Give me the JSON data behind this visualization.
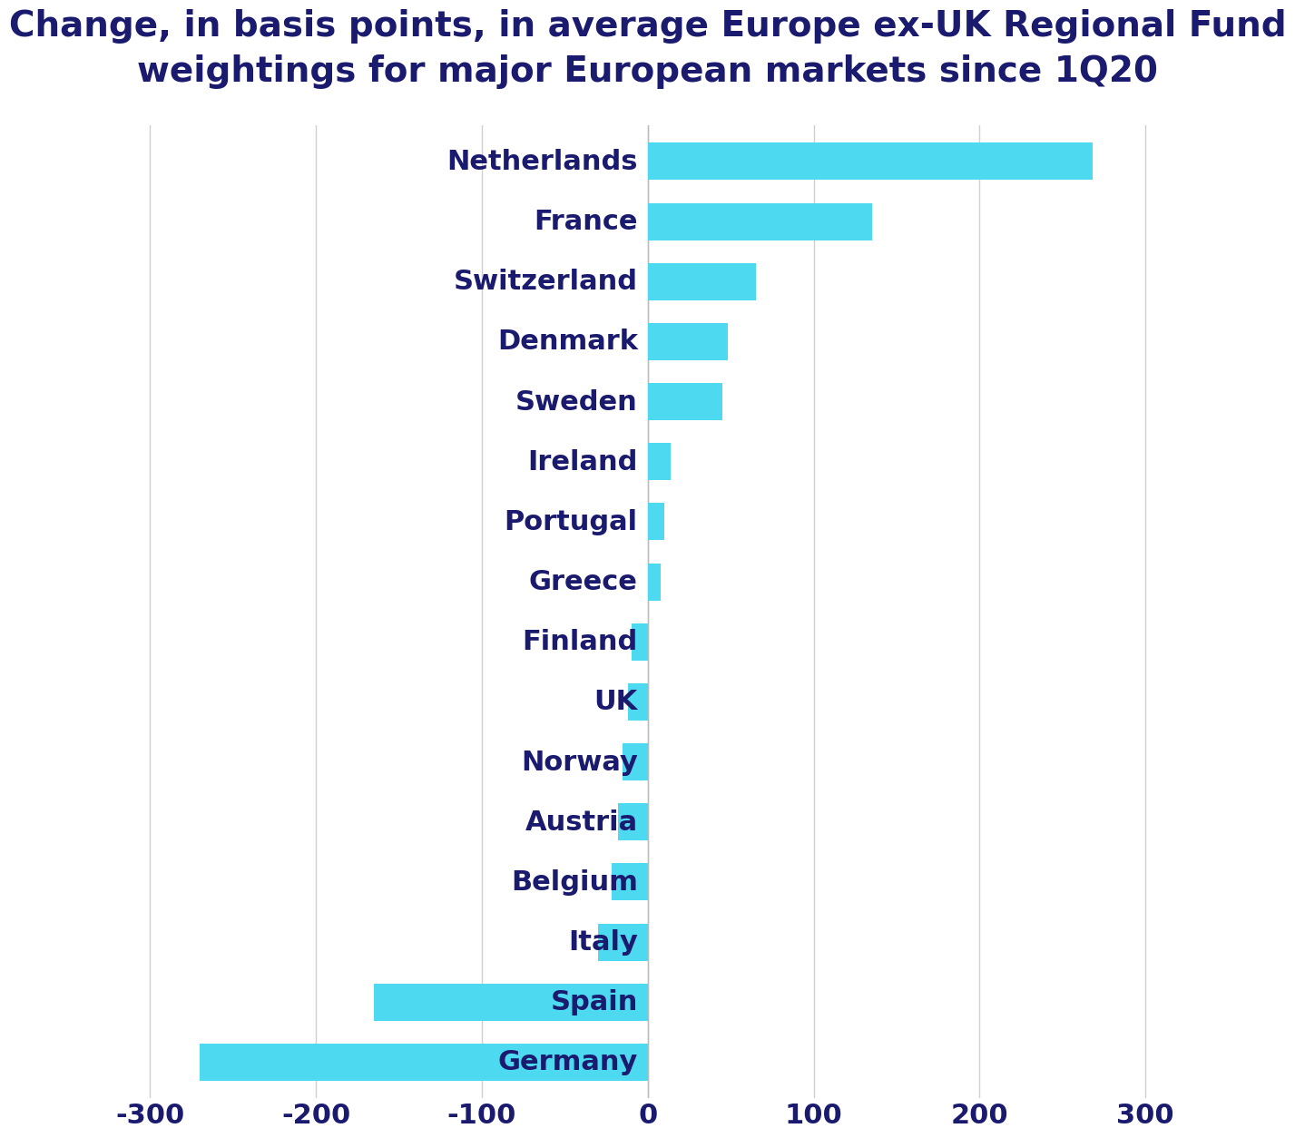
{
  "title": "Change, in basis points, in average Europe ex-UK Regional Fund\nweightings for major European markets since 1Q20",
  "categories": [
    "Germany",
    "Spain",
    "Italy",
    "Belgium",
    "Austria",
    "Norway",
    "UK",
    "Finland",
    "Greece",
    "Portugal",
    "Ireland",
    "Sweden",
    "Denmark",
    "Switzerland",
    "France",
    "Netherlands"
  ],
  "values": [
    -270,
    -165,
    -30,
    -22,
    -18,
    -15,
    -12,
    -10,
    8,
    10,
    14,
    45,
    48,
    65,
    135,
    268
  ],
  "bar_color": "#4DD9F0",
  "label_color": "#1a1a6e",
  "title_color": "#1a1a6e",
  "background_color": "#ffffff",
  "xlim": [
    -320,
    320
  ],
  "xticks": [
    -300,
    -200,
    -100,
    0,
    100,
    200,
    300
  ],
  "title_fontsize": 28,
  "label_fontsize": 22,
  "tick_fontsize": 22,
  "grid_color": "#d0d0d0",
  "bar_height": 0.62
}
